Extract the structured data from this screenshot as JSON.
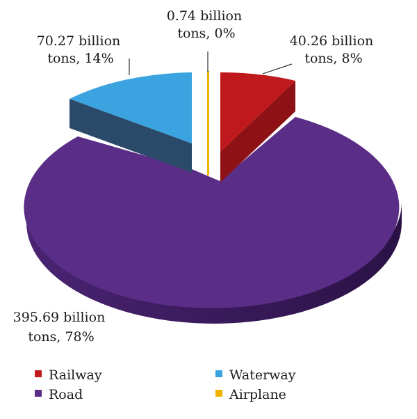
{
  "chart_data": {
    "type": "pie",
    "title": "",
    "style": "3d-exploded",
    "unit": "billion tons",
    "slices": [
      {
        "name": "Railway",
        "value": 40.26,
        "percent": 8,
        "label_line1": "40.26 billion",
        "label_line2": "tons, 8%",
        "color": "#c0191d",
        "dark": "#8e1215"
      },
      {
        "name": "Road",
        "value": 395.69,
        "percent": 78,
        "label_line1": "395.69 billion",
        "label_line2": "tons, 78%",
        "color": "#5a2d87",
        "dark": "#3a1a5c"
      },
      {
        "name": "Waterway",
        "value": 70.27,
        "percent": 14,
        "label_line1": "70.27 billion",
        "label_line2": "tons, 14%",
        "color": "#3ba3df",
        "dark": "#2b4a6a"
      },
      {
        "name": "Airplane",
        "value": 0.74,
        "percent": 0,
        "label_line1": "0.74 billion",
        "label_line2": "tons, 0%",
        "color": "#f0b400",
        "dark": "#c08c00"
      }
    ],
    "legend": {
      "placement": "bottom",
      "entries": [
        "Railway",
        "Waterway",
        "Road",
        "Airplane"
      ]
    }
  }
}
